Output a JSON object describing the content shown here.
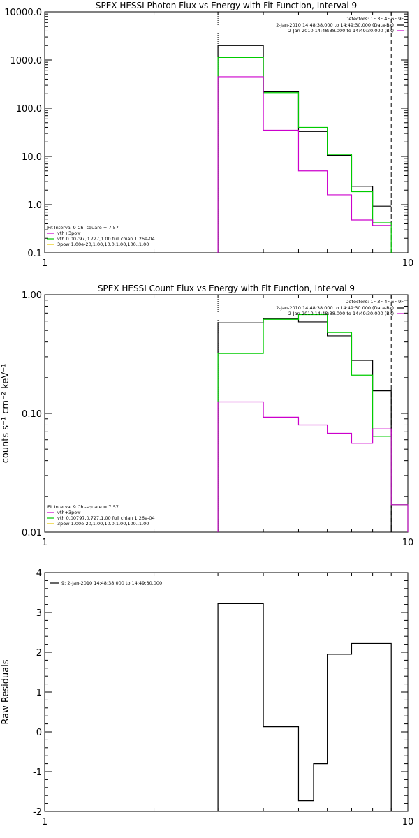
{
  "panels": [
    {
      "title": "SPEX HESSI Photon Flux vs Energy with Fit Function, Interval 9",
      "detectors": "Detectors: 1F 3F 4F 6F 9F",
      "legend_tr": [
        {
          "text": "2-Jan-2010 14:48:38.000 to 14:49:30.000 (Data-Bk)",
          "color": "#000000"
        },
        {
          "text": "2-Jan-2010 14:48:38.000 to 14:49:30.000 (Bk)",
          "color": "#cc00cc"
        }
      ],
      "legend_bl": [
        {
          "text": "Fit Interval 9    Chi-square = 7.57",
          "color": "#000000"
        },
        {
          "text": "vth+3pow",
          "color": "#cc00cc"
        },
        {
          "text": "vth 0.00797,0.727,1.00   full chian 1.26e-04",
          "color": "#00cc00"
        },
        {
          "text": "3pow 1.00e-20,1.00,10.0,1.00,100.,1.00",
          "color": "#e8c800"
        }
      ]
    },
    {
      "title": "SPEX HESSI Count Flux vs Energy with Fit Function, Interval 9",
      "ylabel": "counts s⁻¹ cm⁻² keV⁻¹",
      "detectors": "Detectors: 1F 3F 4F 6F 9F",
      "legend_tr": [
        {
          "text": "2-Jan-2010 14:48:38.000 to 14:49:30.000 (Data-Bk)",
          "color": "#000000"
        },
        {
          "text": "2-Jan-2010 14:48:38.000 to 14:49:30.000 (Bk)",
          "color": "#cc00cc"
        }
      ],
      "legend_bl": [
        {
          "text": "Fit Interval 9    Chi-square = 7.57",
          "color": "#000000"
        },
        {
          "text": "vth+3pow",
          "color": "#cc00cc"
        },
        {
          "text": "vth 0.00797,0.727,1.00   full chian 1.26e-04",
          "color": "#00cc00"
        },
        {
          "text": "3pow 1.00e-20,1.00,10.0,1.00,100.,1.00",
          "color": "#e8c800"
        }
      ]
    },
    {
      "title": "",
      "ylabel": "Raw Residuals",
      "legend_tl": [
        {
          "text": "9:  2-Jan-2010 14:48:38.000 to 14:49:30.000",
          "color": "#000000"
        }
      ]
    }
  ],
  "chart_data": [
    {
      "type": "line",
      "title": "SPEX HESSI Photon Flux vs Energy with Fit Function, Interval 9",
      "xlabel": "",
      "ylabel": "",
      "x_scale": "log",
      "y_scale": "log",
      "xlim": [
        1,
        10
      ],
      "ylim": [
        0.1,
        10000
      ],
      "x_ticks": [
        "1",
        "10"
      ],
      "y_ticks": [
        "0.1",
        "1.0",
        "10.0",
        "100.0",
        "1000.0",
        "10000.0"
      ],
      "vlines": [
        {
          "x": 3,
          "style": "dotted"
        },
        {
          "x": 9,
          "style": "dashed"
        }
      ],
      "bin_edges": [
        3,
        4,
        5,
        6,
        7,
        8,
        9
      ],
      "series": [
        {
          "name": "Data-Bk",
          "color": "#000000",
          "values": [
            2000,
            220,
            33,
            10.5,
            2.4,
            0.93
          ]
        },
        {
          "name": "vth+3pow",
          "color": "#00cc00",
          "values": [
            1130,
            210,
            40,
            11,
            1.85,
            0.42
          ],
          "drop_at_end": true
        },
        {
          "name": "Bk",
          "color": "#cc00cc",
          "values": [
            450,
            35,
            5,
            1.6,
            0.48,
            0.37
          ]
        }
      ]
    },
    {
      "type": "line",
      "title": "SPEX HESSI Count Flux vs Energy with Fit Function, Interval 9",
      "xlabel": "",
      "ylabel": "counts s⁻¹ cm⁻² keV⁻¹",
      "x_scale": "log",
      "y_scale": "log",
      "xlim": [
        1,
        10
      ],
      "ylim": [
        0.01,
        1
      ],
      "x_ticks": [
        "1",
        "10"
      ],
      "y_ticks": [
        "0.01",
        "0.10",
        "1.00"
      ],
      "vlines": [
        {
          "x": 3,
          "style": "dotted"
        },
        {
          "x": 9,
          "style": "dashed"
        }
      ],
      "bin_edges": [
        3,
        4,
        5,
        6,
        7,
        8,
        9,
        10
      ],
      "series": [
        {
          "name": "Data-Bk",
          "color": "#000000",
          "values": [
            0.58,
            0.63,
            0.59,
            0.45,
            0.28,
            0.155
          ]
        },
        {
          "name": "vth+3pow",
          "color": "#00cc00",
          "values": [
            0.32,
            0.62,
            0.68,
            0.48,
            0.21,
            0.064,
            0.017
          ]
        },
        {
          "name": "Bk",
          "color": "#cc00cc",
          "values": [
            0.125,
            0.093,
            0.08,
            0.068,
            0.056,
            0.074,
            0.017
          ]
        }
      ]
    },
    {
      "type": "line",
      "title": "",
      "xlabel": "",
      "ylabel": "Raw Residuals",
      "x_scale": "log",
      "y_scale": "linear",
      "xlim": [
        1,
        10
      ],
      "ylim": [
        -2,
        4
      ],
      "x_ticks": [
        "1",
        "10"
      ],
      "y_ticks": [
        "-2",
        "-1",
        "0",
        "1",
        "2",
        "3",
        "4"
      ],
      "bin_edges": [
        3,
        4,
        5,
        5.5,
        6,
        7,
        8,
        9
      ],
      "series": [
        {
          "name": "9:  2-Jan-2010 14:48:38.000 to 14:49:30.000",
          "color": "#000000",
          "values": [
            3.22,
            0.13,
            -1.73,
            -0.8,
            1.95,
            2.22,
            2.22
          ]
        }
      ]
    }
  ]
}
